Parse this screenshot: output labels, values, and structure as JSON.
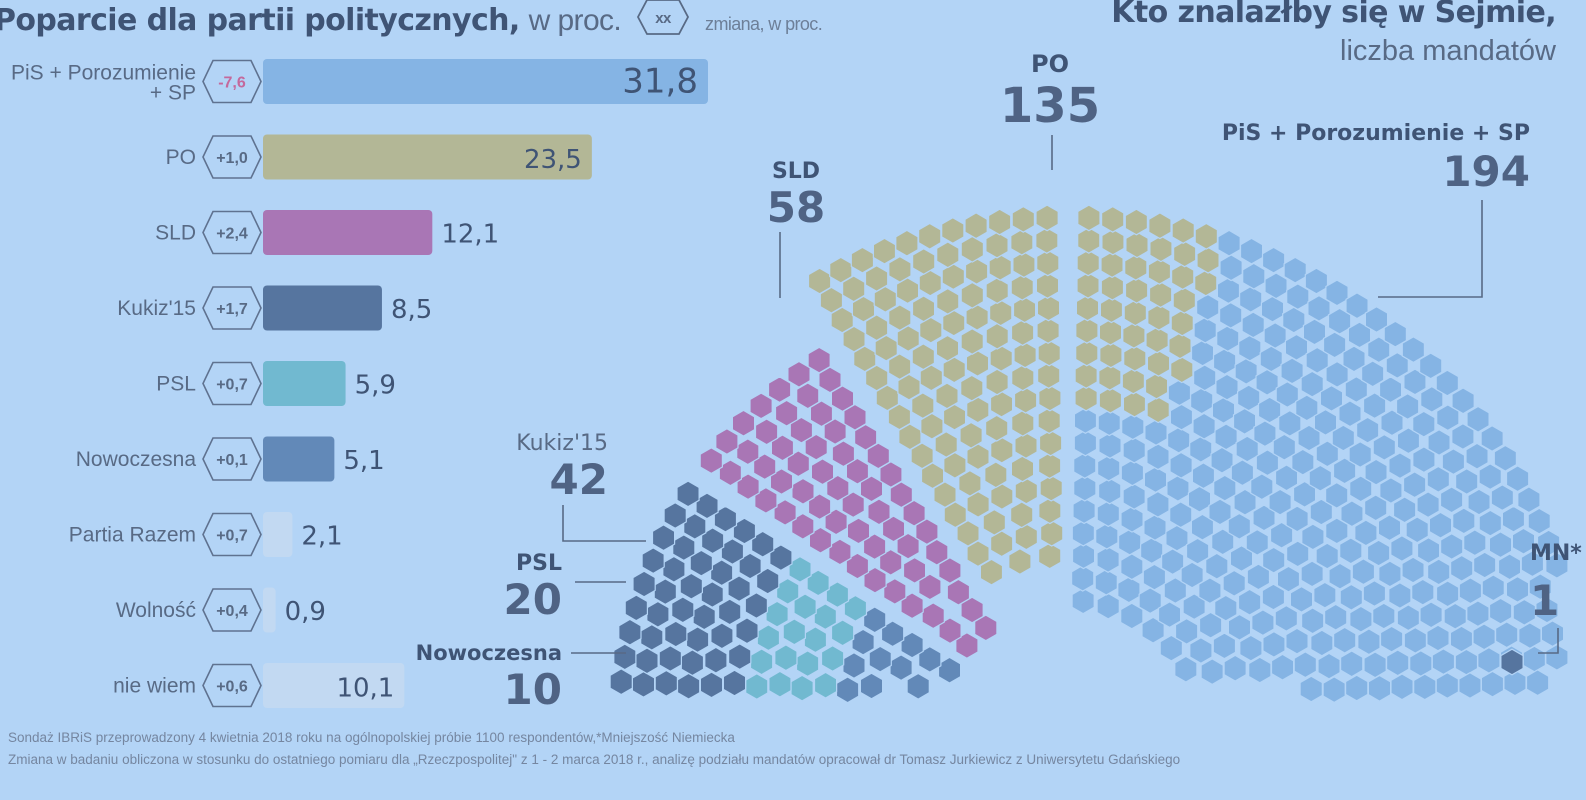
{
  "header": {
    "left_title_bold": "Poparcie dla partii politycznych,",
    "left_title_light": "w proc.",
    "left_change_badge": "xx",
    "left_change_label": "zmiana, w proc.",
    "right_title_bold": "Kto znalazłby się w Sejmie,",
    "right_title_light": "liczba mandatów"
  },
  "chart_data": [
    {
      "type": "bar",
      "orientation": "horizontal",
      "title": "Poparcie dla partii politycznych, w proc.",
      "categories": [
        "PiS + Porozumienie + SP",
        "PO",
        "SLD",
        "Kukiz'15",
        "PSL",
        "Nowoczesna",
        "Partia Razem",
        "Wolność",
        "nie wiem"
      ],
      "label_lines": [
        [
          "PiS + Porozumienie",
          "+ SP"
        ],
        [
          "PO"
        ],
        [
          "SLD"
        ],
        [
          "Kukiz'15"
        ],
        [
          "PSL"
        ],
        [
          "Nowoczesna"
        ],
        [
          "Partia Razem"
        ],
        [
          "Wolność"
        ],
        [
          "nie wiem"
        ]
      ],
      "values": [
        31.8,
        23.5,
        12.1,
        8.5,
        5.9,
        5.1,
        2.1,
        0.9,
        10.1
      ],
      "value_labels": [
        "31,8",
        "23,5",
        "12,1",
        "8,5",
        "5,9",
        "5,1",
        "2,1",
        "0,9",
        "10,1"
      ],
      "changes": [
        "-7,6",
        "+1,0",
        "+2,4",
        "+1,7",
        "+0,7",
        "+0,1",
        "+0,7",
        "+0,4",
        "+0,6"
      ],
      "change_colors": [
        "#c4699c",
        "#586a85",
        "#586a85",
        "#586a85",
        "#586a85",
        "#586a85",
        "#586a85",
        "#586a85",
        "#586a85"
      ],
      "colors": [
        "#85b4e4",
        "#b3b796",
        "#a976b5",
        "#56759f",
        "#71b9d0",
        "#6289b8",
        "#c2d9f2",
        "#c2d9f2",
        "#c2d9f2"
      ],
      "xlim": [
        0,
        31.8
      ]
    },
    {
      "type": "hemicycle",
      "title": "Kto znalazłby się w Sejmie, liczba mandatów",
      "parties": [
        {
          "name": "PO",
          "seats": "135",
          "color": "#b3b796"
        },
        {
          "name": "SLD",
          "seats": "58",
          "color": "#a976b5"
        },
        {
          "name": "PiS + Porozumienie + SP",
          "seats": "194",
          "color": "#85b4e4"
        },
        {
          "name": "Kukiz'15",
          "seats": "42",
          "color": "#56759f"
        },
        {
          "name": "PSL",
          "seats": "20",
          "color": "#71b9d0"
        },
        {
          "name": "Nowoczesna",
          "seats": "10",
          "color": "#6289b8"
        },
        {
          "name": "MN*",
          "seats": "1",
          "color": "#56759f"
        }
      ]
    }
  ],
  "footnotes": [
    "Sondaż IBRiS przeprowadzony 4 kwietnia 2018 roku na ogólnopolskiej próbie 1100 respondentów,*Mniejszość Niemiecka",
    "Zmiana w badaniu obliczona w stosunku do ostatniego pomiaru dla „Rzeczpospolitej\" z 1 - 2 marca 2018 r., analizę podziału mandatów opracował dr Tomasz Jurkiewicz z Uniwersytetu Gdańskiego"
  ]
}
